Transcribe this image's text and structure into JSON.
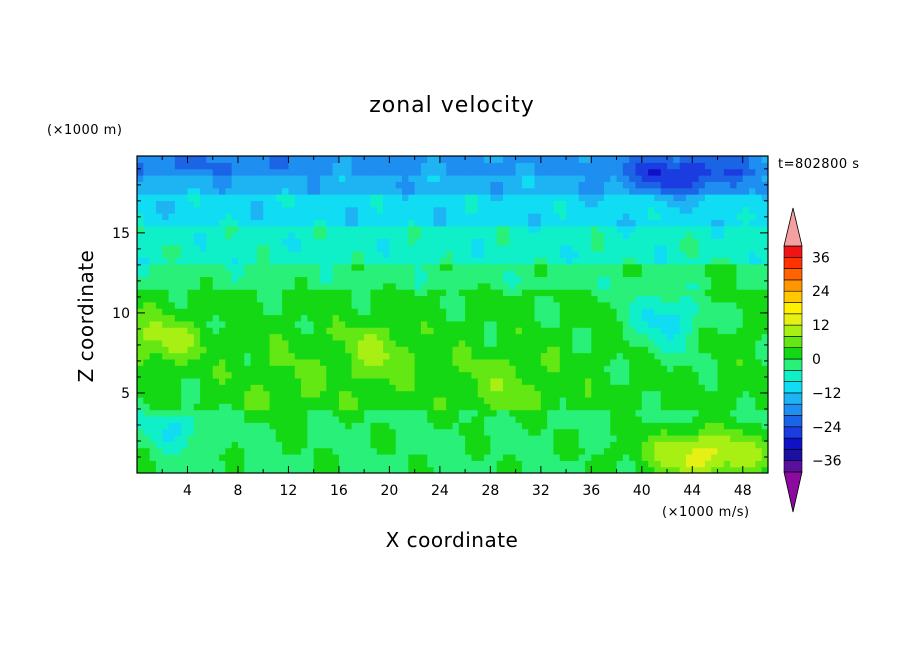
{
  "chart_data": {
    "type": "heatmap",
    "title": "zonal velocity",
    "xlabel": "X coordinate",
    "ylabel": "Z coordinate",
    "x_unit": "(×1000 m/s)",
    "y_unit": "(×1000 m)",
    "time_label": "t=802800 s",
    "xlim": [
      0,
      50
    ],
    "ylim": [
      0,
      19.8
    ],
    "x_ticks": [
      4,
      8,
      12,
      16,
      20,
      24,
      28,
      32,
      36,
      40,
      44,
      48
    ],
    "y_ticks": [
      5,
      10,
      15
    ],
    "colorbar": {
      "levels": [
        -40,
        -36,
        -32,
        -28,
        -24,
        -20,
        -16,
        -12,
        -8,
        -4,
        0,
        4,
        8,
        12,
        16,
        20,
        24,
        28,
        32,
        36,
        40
      ],
      "colors": [
        "#5a0f9e",
        "#1c10a0",
        "#1010c8",
        "#1a3ce0",
        "#1c64e6",
        "#1e8ef0",
        "#1eb4f4",
        "#10dcf4",
        "#10f0c8",
        "#28f078",
        "#14d814",
        "#64e814",
        "#a8f014",
        "#e6f014",
        "#fff000",
        "#ffc800",
        "#ff9600",
        "#ff6400",
        "#ff3200",
        "#f01414"
      ],
      "under_color": "#8c0aa0",
      "over_color": "#f5a0a0",
      "tick_labels": [
        "36",
        "24",
        "12",
        "0",
        "−12",
        "−24",
        "−36"
      ],
      "tick_values": [
        36,
        24,
        12,
        0,
        -12,
        -24,
        -36
      ]
    },
    "field_features": [
      {
        "x": 43,
        "z": 18.5,
        "value": -26,
        "rx": 5,
        "rz": 1.2
      },
      {
        "x": 4,
        "z": 19.3,
        "value": -20,
        "rx": 10,
        "rz": 0.8
      },
      {
        "x": 45,
        "z": 1.2,
        "value": 14,
        "rx": 5,
        "rz": 1.5
      },
      {
        "x": 2,
        "z": 8.4,
        "value": 10,
        "rx": 3,
        "rz": 1.5
      },
      {
        "x": 19,
        "z": 7.5,
        "value": 8,
        "rx": 3,
        "rz": 2
      },
      {
        "x": 29,
        "z": 5.5,
        "value": 6,
        "rx": 4,
        "rz": 2
      },
      {
        "x": 42,
        "z": 10,
        "value": -10,
        "rx": 3,
        "rz": 2.5
      },
      {
        "x": 3,
        "z": 2.8,
        "value": -8,
        "rx": 2.5,
        "rz": 1.2
      },
      {
        "x": 12,
        "z": 5.5,
        "value": 4,
        "rx": 4,
        "rz": 3
      },
      {
        "x": 43,
        "z": 12,
        "value": 3,
        "rx": 4,
        "rz": 1.5
      }
    ]
  }
}
